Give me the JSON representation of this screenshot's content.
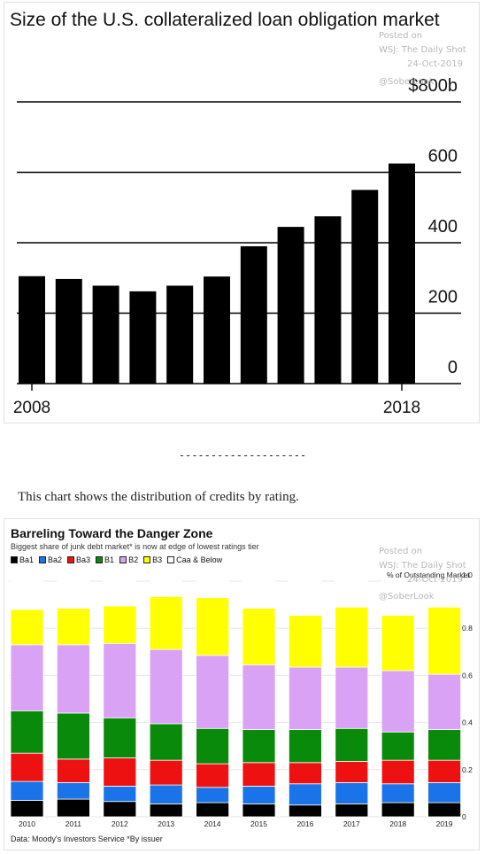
{
  "chart_data": [
    {
      "type": "bar",
      "title": "Size of the U.S. collateralized loan obligation market",
      "categories": [
        "2008",
        "2009",
        "2010",
        "2011",
        "2012",
        "2013",
        "2014",
        "2015",
        "2016",
        "2017",
        "2018"
      ],
      "values": [
        305,
        297,
        278,
        262,
        278,
        304,
        390,
        445,
        475,
        550,
        625
      ],
      "ylim": [
        0,
        800
      ],
      "yticks": [
        {
          "value": 0,
          "label": "0"
        },
        {
          "value": 200,
          "label": "200"
        },
        {
          "value": 400,
          "label": "400"
        },
        {
          "value": 600,
          "label": "600"
        },
        {
          "value": 800,
          "label": "$800b"
        }
      ],
      "xticks": [
        {
          "category": "2008",
          "label": "2008"
        },
        {
          "category": "2018",
          "label": "2018"
        }
      ],
      "grid": true,
      "bar_color": "#000000"
    },
    {
      "type": "bar",
      "stacked": true,
      "title": "Barreling Toward the Danger Zone",
      "subtitle": "Biggest share of junk debt market* is now at edge of lowest ratings tier",
      "ylabel": "% of Outstanding Market",
      "source": "Data: Moody's Investors Service *By issuer",
      "categories": [
        "2010",
        "2011",
        "2012",
        "2013",
        "2014",
        "2015",
        "2016",
        "2017",
        "2018",
        "2019"
      ],
      "ylim": [
        0,
        1.0
      ],
      "yticks": [
        {
          "value": 0,
          "label": "0"
        },
        {
          "value": 0.2,
          "label": "0.2"
        },
        {
          "value": 0.4,
          "label": "0.4"
        },
        {
          "value": 0.6,
          "label": "0.6"
        },
        {
          "value": 0.8,
          "label": "0.8"
        },
        {
          "value": 1.0,
          "label": "1.0"
        }
      ],
      "legend_position": "top-left",
      "series": [
        {
          "name": "Ba1",
          "color": "#000000",
          "values": [
            0.07,
            0.075,
            0.065,
            0.055,
            0.06,
            0.055,
            0.05,
            0.055,
            0.06,
            0.06
          ]
        },
        {
          "name": "Ba2",
          "color": "#1a73e8",
          "values": [
            0.08,
            0.07,
            0.065,
            0.08,
            0.065,
            0.075,
            0.09,
            0.09,
            0.08,
            0.085
          ]
        },
        {
          "name": "Ba3",
          "color": "#ee1111",
          "values": [
            0.12,
            0.1,
            0.12,
            0.105,
            0.1,
            0.1,
            0.09,
            0.09,
            0.1,
            0.095
          ]
        },
        {
          "name": "B1",
          "color": "#0a8a0a",
          "values": [
            0.18,
            0.195,
            0.17,
            0.155,
            0.15,
            0.14,
            0.14,
            0.14,
            0.12,
            0.13
          ]
        },
        {
          "name": "B2",
          "color": "#d9a2f5",
          "values": [
            0.28,
            0.29,
            0.315,
            0.315,
            0.31,
            0.275,
            0.265,
            0.26,
            0.26,
            0.235
          ]
        },
        {
          "name": "B3",
          "color": "#ffff00",
          "values": [
            0.15,
            0.155,
            0.16,
            0.225,
            0.245,
            0.24,
            0.22,
            0.255,
            0.235,
            0.285
          ]
        },
        {
          "name": "Caa & Below",
          "color": "#ffffff",
          "values": [
            0.12,
            0.115,
            0.105,
            0.065,
            0.07,
            0.115,
            0.145,
            0.11,
            0.145,
            0.11
          ]
        }
      ]
    }
  ],
  "watermark1": {
    "line1": "Posted on",
    "line2": "WSJ: The Daily Shot",
    "line3": "24-Oct-2019",
    "line4": "@SoberLook"
  },
  "watermark2": {
    "line1": "Posted on",
    "line2": "WSJ: The Daily Shot",
    "line3": "24-Oct-2019",
    "line4": "@SoberLook"
  },
  "separator": "--------------------",
  "caption": "This chart shows the distribution of credits by rating."
}
